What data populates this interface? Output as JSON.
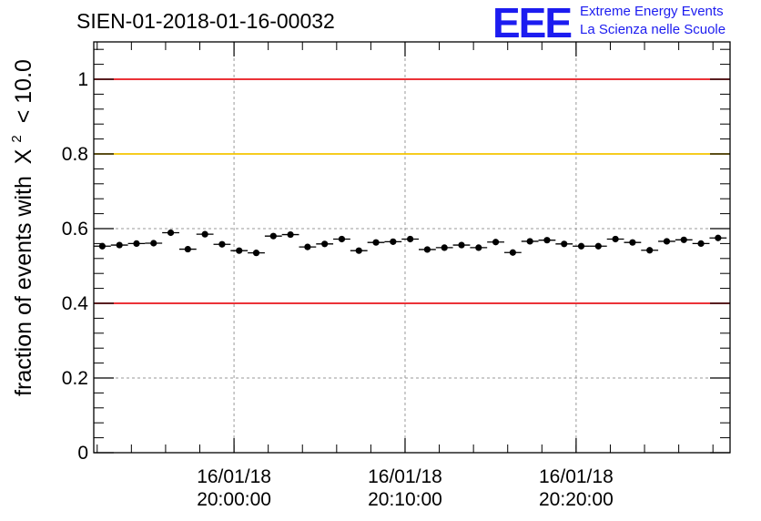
{
  "header": {
    "run_title": "SIEN-01-2018-01-16-00032",
    "logo_mark": "EEE",
    "logo_line1": "Extreme Energy Events",
    "logo_line2": "La Scienza nelle Scuole"
  },
  "colors": {
    "red_line": "#e8141c",
    "yellow_line": "#f5c400",
    "logo_blue": "#1c1cf0",
    "marker": "#000000"
  },
  "chart_data": {
    "type": "scatter",
    "title": "SIEN-01-2018-01-16-00032",
    "xlabel": "",
    "ylabel_prefix": "fraction of events with",
    "ylabel_symbol": "X",
    "ylabel_sup": "2",
    "ylabel_suffix": "< 10.0",
    "ylim": [
      0,
      1.1
    ],
    "xlim_minutes": [
      -8.2,
      29.0
    ],
    "yticks": [
      {
        "value": 0,
        "label": "0"
      },
      {
        "value": 0.2,
        "label": "0.2"
      },
      {
        "value": 0.4,
        "label": "0.4"
      },
      {
        "value": 0.6,
        "label": "0.6"
      },
      {
        "value": 0.8,
        "label": "0.8"
      },
      {
        "value": 1.0,
        "label": "1"
      }
    ],
    "xticks": [
      {
        "minutes": 0,
        "date": "16/01/18",
        "time": "20:00:00"
      },
      {
        "minutes": 10,
        "date": "16/01/18",
        "time": "20:10:00"
      },
      {
        "minutes": 20,
        "date": "16/01/18",
        "time": "20:20:00"
      }
    ],
    "reference_lines": [
      {
        "value": 1.0,
        "color": "red"
      },
      {
        "value": 0.8,
        "color": "yellow"
      },
      {
        "value": 0.4,
        "color": "red"
      }
    ],
    "bin_width_minutes": 1.0,
    "series": [
      {
        "name": "fraction",
        "x_minutes": [
          -7.7,
          -6.7,
          -5.7,
          -4.7,
          -3.7,
          -2.7,
          -1.7,
          -0.7,
          0.3,
          1.3,
          2.3,
          3.3,
          4.3,
          5.3,
          6.3,
          7.3,
          8.3,
          9.3,
          10.3,
          11.3,
          12.3,
          13.3,
          14.3,
          15.3,
          16.3,
          17.3,
          18.3,
          19.3,
          20.3,
          21.3,
          22.3,
          23.3,
          24.3,
          25.3,
          26.3,
          27.3,
          28.3
        ],
        "values": [
          0.553,
          0.556,
          0.56,
          0.561,
          0.589,
          0.545,
          0.585,
          0.558,
          0.541,
          0.535,
          0.58,
          0.584,
          0.551,
          0.559,
          0.572,
          0.541,
          0.563,
          0.565,
          0.572,
          0.544,
          0.549,
          0.556,
          0.549,
          0.564,
          0.536,
          0.566,
          0.569,
          0.559,
          0.553,
          0.553,
          0.572,
          0.563,
          0.542,
          0.566,
          0.57,
          0.56,
          0.575
        ],
        "errors": [
          0.008,
          0.008,
          0.008,
          0.008,
          0.008,
          0.008,
          0.008,
          0.008,
          0.008,
          0.008,
          0.008,
          0.008,
          0.008,
          0.008,
          0.008,
          0.008,
          0.008,
          0.008,
          0.008,
          0.008,
          0.008,
          0.008,
          0.008,
          0.008,
          0.008,
          0.008,
          0.008,
          0.008,
          0.008,
          0.008,
          0.008,
          0.008,
          0.008,
          0.008,
          0.008,
          0.008,
          0.008
        ]
      }
    ]
  }
}
